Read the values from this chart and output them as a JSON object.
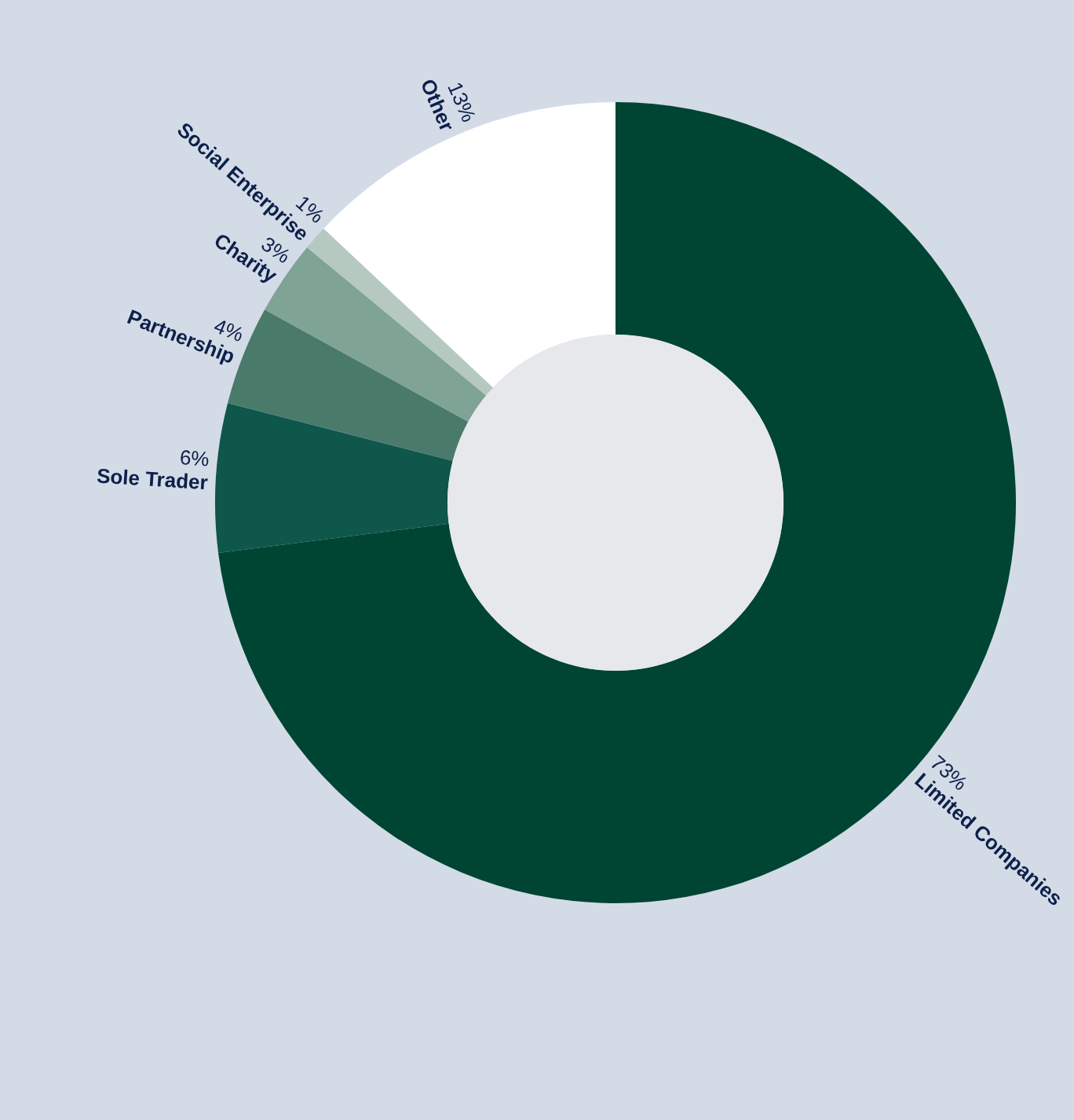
{
  "chart_data": {
    "type": "donut",
    "categories": [
      "Limited Companies",
      "Sole Trader",
      "Partnership",
      "Charity",
      "Social Enterprise",
      "Other"
    ],
    "values": [
      73,
      6,
      4,
      3,
      1,
      13
    ],
    "value_labels": [
      "73%",
      "6%",
      "4%",
      "3%",
      "1%",
      "13%"
    ],
    "colors": [
      "#004433",
      "#0e574a",
      "#4a7a6a",
      "#7fa395",
      "#b5c9c0",
      "#ffffff"
    ]
  }
}
